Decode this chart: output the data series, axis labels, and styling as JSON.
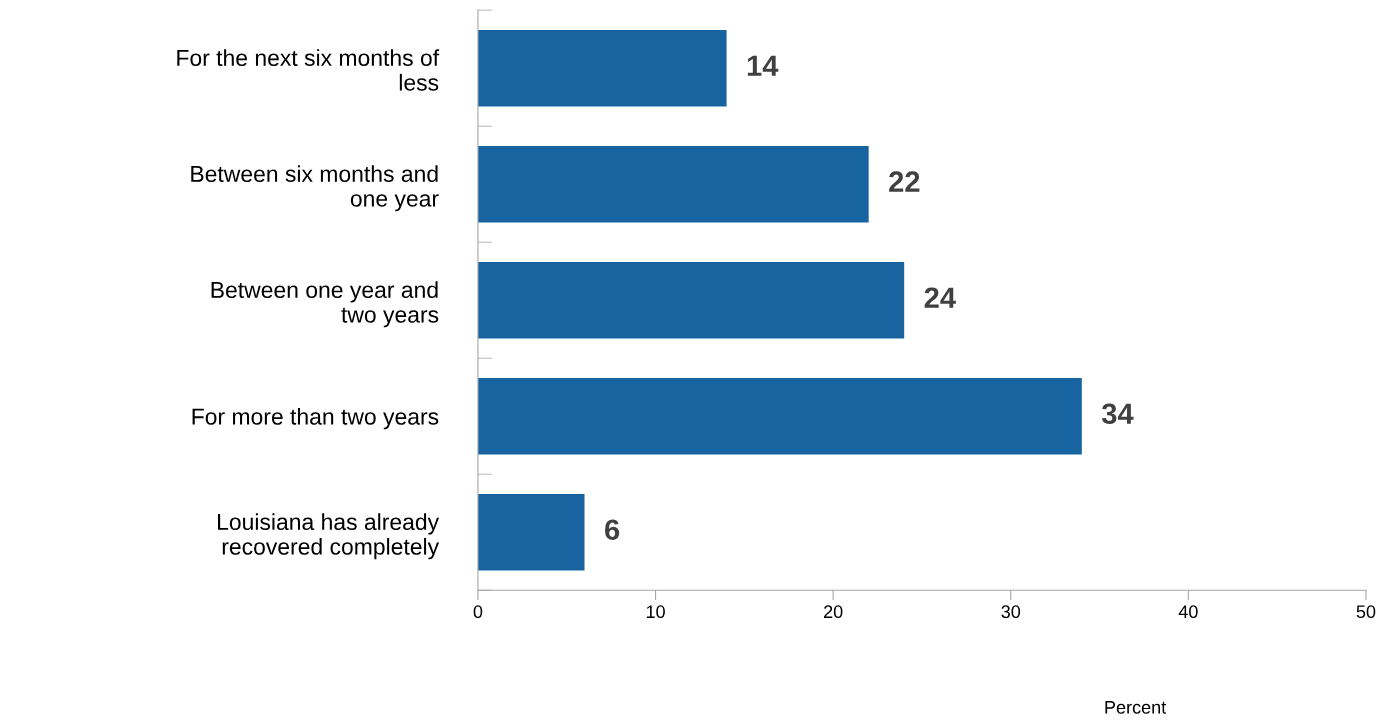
{
  "chart_data": {
    "type": "bar",
    "orientation": "horizontal",
    "xlabel": "Percent",
    "categories": [
      "For the next six months of\nless",
      "Between six months and\none year",
      "Between one year and\ntwo years",
      "For more than two years",
      "Louisiana has already\nrecovered completely"
    ],
    "values": [
      14,
      22,
      24,
      34,
      6
    ],
    "color": "#1764a0",
    "xlim": [
      0,
      50
    ],
    "xticks": [
      0,
      10,
      20,
      30,
      40,
      50
    ],
    "data_labels": true,
    "grid": false
  }
}
